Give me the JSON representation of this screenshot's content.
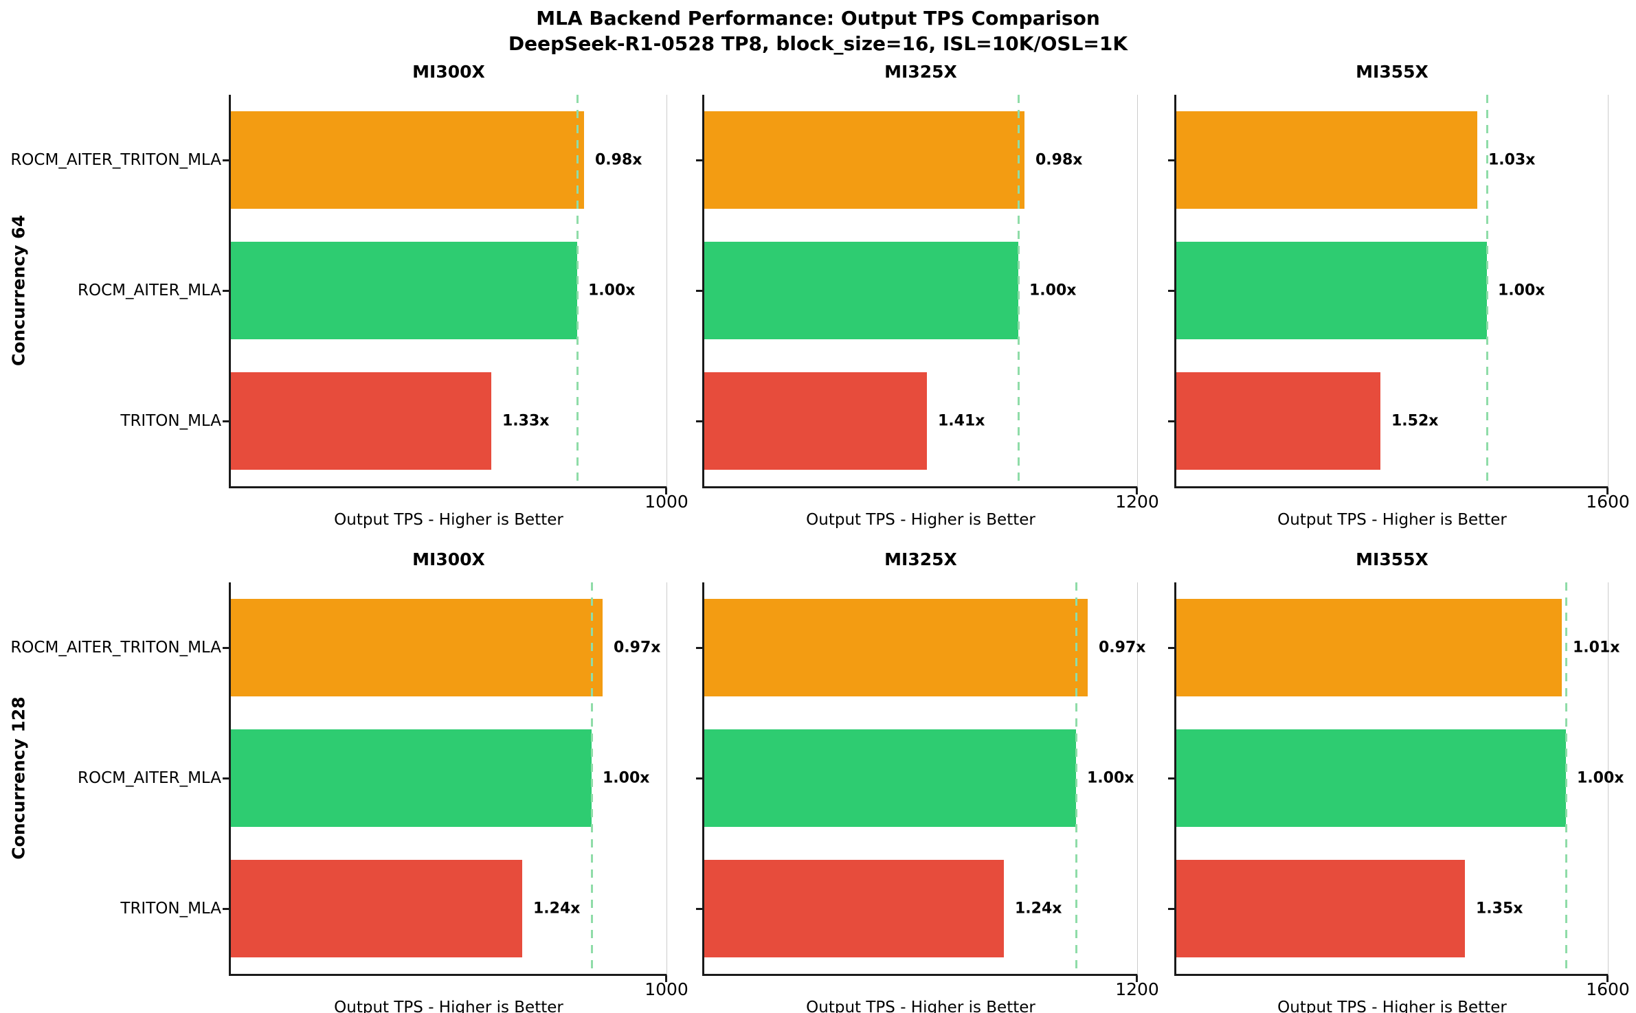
{
  "figure": {
    "title_line1": "MLA Backend Performance: Output TPS Comparison",
    "title_line2": "DeepSeek-R1-0528 TP8, block_size=16, ISL=10K/OSL=1K",
    "background": "#ffffff"
  },
  "colors": {
    "ROCM_AITER_TRITON_MLA": "#f39c12",
    "ROCM_AITER_MLA": "#2ecc71",
    "TRITON_MLA": "#e74c3c",
    "reference_line": "#8fdca8",
    "axis_spine": "#1a1a1a",
    "right_spine": "#cccccc",
    "text": "#000000"
  },
  "chart_data": {
    "type": "bar",
    "orientation": "horizontal",
    "xlabel": "Output TPS - Higher is Better",
    "categories": [
      "ROCM_AITER_TRITON_MLA",
      "ROCM_AITER_MLA",
      "TRITON_MLA"
    ],
    "legend": "none",
    "grid": "off",
    "reference_line_style": "dashed vertical at ROCM_AITER_MLA value",
    "rows": [
      {
        "row_label": "Concurrency 64",
        "subplots": [
          {
            "title": "MI300X",
            "xlim": [
              0,
              1000
            ],
            "xmax_tick": "1000",
            "xlabel": "Output TPS - Higher is Better",
            "reference_tps": 795,
            "bars": [
              {
                "backend": "ROCM_AITER_TRITON_MLA",
                "tps": 810,
                "ratio_label": "0.98x"
              },
              {
                "backend": "ROCM_AITER_MLA",
                "tps": 795,
                "ratio_label": "1.00x"
              },
              {
                "backend": "TRITON_MLA",
                "tps": 598,
                "ratio_label": "1.33x"
              }
            ]
          },
          {
            "title": "MI325X",
            "xlim": [
              0,
              1200
            ],
            "xmax_tick": "1200",
            "xlabel": "Output TPS - Higher is Better",
            "reference_tps": 870,
            "bars": [
              {
                "backend": "ROCM_AITER_TRITON_MLA",
                "tps": 888,
                "ratio_label": "0.98x"
              },
              {
                "backend": "ROCM_AITER_MLA",
                "tps": 870,
                "ratio_label": "1.00x"
              },
              {
                "backend": "TRITON_MLA",
                "tps": 617,
                "ratio_label": "1.41x"
              }
            ]
          },
          {
            "title": "MI355X",
            "xlim": [
              0,
              1600
            ],
            "xmax_tick": "1600",
            "xlabel": "Output TPS - Higher is Better",
            "reference_tps": 1151,
            "bars": [
              {
                "backend": "ROCM_AITER_TRITON_MLA",
                "tps": 1117,
                "ratio_label": "1.03x"
              },
              {
                "backend": "ROCM_AITER_MLA",
                "tps": 1151,
                "ratio_label": "1.00x"
              },
              {
                "backend": "TRITON_MLA",
                "tps": 757,
                "ratio_label": "1.52x"
              }
            ]
          }
        ]
      },
      {
        "row_label": "Concurrency 128",
        "subplots": [
          {
            "title": "MI300X",
            "xlim": [
              0,
              1000
            ],
            "xmax_tick": "1000",
            "xlabel": "Output TPS - Higher is Better",
            "reference_tps": 828,
            "bars": [
              {
                "backend": "ROCM_AITER_TRITON_MLA",
                "tps": 854,
                "ratio_label": "0.97x"
              },
              {
                "backend": "ROCM_AITER_MLA",
                "tps": 828,
                "ratio_label": "1.00x"
              },
              {
                "backend": "TRITON_MLA",
                "tps": 668,
                "ratio_label": "1.24x"
              }
            ]
          },
          {
            "title": "MI325X",
            "xlim": [
              0,
              1200
            ],
            "xmax_tick": "1200",
            "xlabel": "Output TPS - Higher is Better",
            "reference_tps": 1031,
            "bars": [
              {
                "backend": "ROCM_AITER_TRITON_MLA",
                "tps": 1063,
                "ratio_label": "0.97x"
              },
              {
                "backend": "ROCM_AITER_MLA",
                "tps": 1031,
                "ratio_label": "1.00x"
              },
              {
                "backend": "TRITON_MLA",
                "tps": 831,
                "ratio_label": "1.24x"
              }
            ]
          },
          {
            "title": "MI355X",
            "xlim": [
              0,
              1600
            ],
            "xmax_tick": "1600",
            "xlabel": "Output TPS - Higher is Better",
            "reference_tps": 1444,
            "bars": [
              {
                "backend": "ROCM_AITER_TRITON_MLA",
                "tps": 1430,
                "ratio_label": "1.01x"
              },
              {
                "backend": "ROCM_AITER_MLA",
                "tps": 1444,
                "ratio_label": "1.00x"
              },
              {
                "backend": "TRITON_MLA",
                "tps": 1070,
                "ratio_label": "1.35x"
              }
            ]
          }
        ]
      }
    ]
  }
}
